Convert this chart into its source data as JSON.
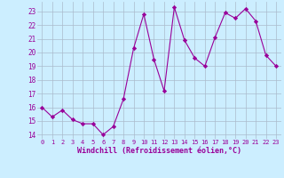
{
  "x": [
    0,
    1,
    2,
    3,
    4,
    5,
    6,
    7,
    8,
    9,
    10,
    11,
    12,
    13,
    14,
    15,
    16,
    17,
    18,
    19,
    20,
    21,
    22,
    23
  ],
  "y": [
    16.0,
    15.3,
    15.8,
    15.1,
    14.8,
    14.8,
    14.0,
    14.6,
    16.6,
    20.3,
    22.8,
    19.5,
    17.2,
    23.3,
    20.9,
    19.6,
    19.0,
    21.1,
    22.9,
    22.5,
    23.2,
    22.3,
    19.8,
    19.0
  ],
  "line_color": "#990099",
  "marker": "D",
  "marker_size": 2.2,
  "bg_color": "#cceeff",
  "grid_color": "#aabbcc",
  "xlabel": "Windchill (Refroidissement éolien,°C)",
  "xlabel_color": "#990099",
  "ylabel_ticks": [
    14,
    15,
    16,
    17,
    18,
    19,
    20,
    21,
    22,
    23
  ],
  "xticks": [
    0,
    1,
    2,
    3,
    4,
    5,
    6,
    7,
    8,
    9,
    10,
    11,
    12,
    13,
    14,
    15,
    16,
    17,
    18,
    19,
    20,
    21,
    22,
    23
  ],
  "ylim": [
    13.7,
    23.7
  ],
  "xlim": [
    -0.5,
    23.5
  ]
}
